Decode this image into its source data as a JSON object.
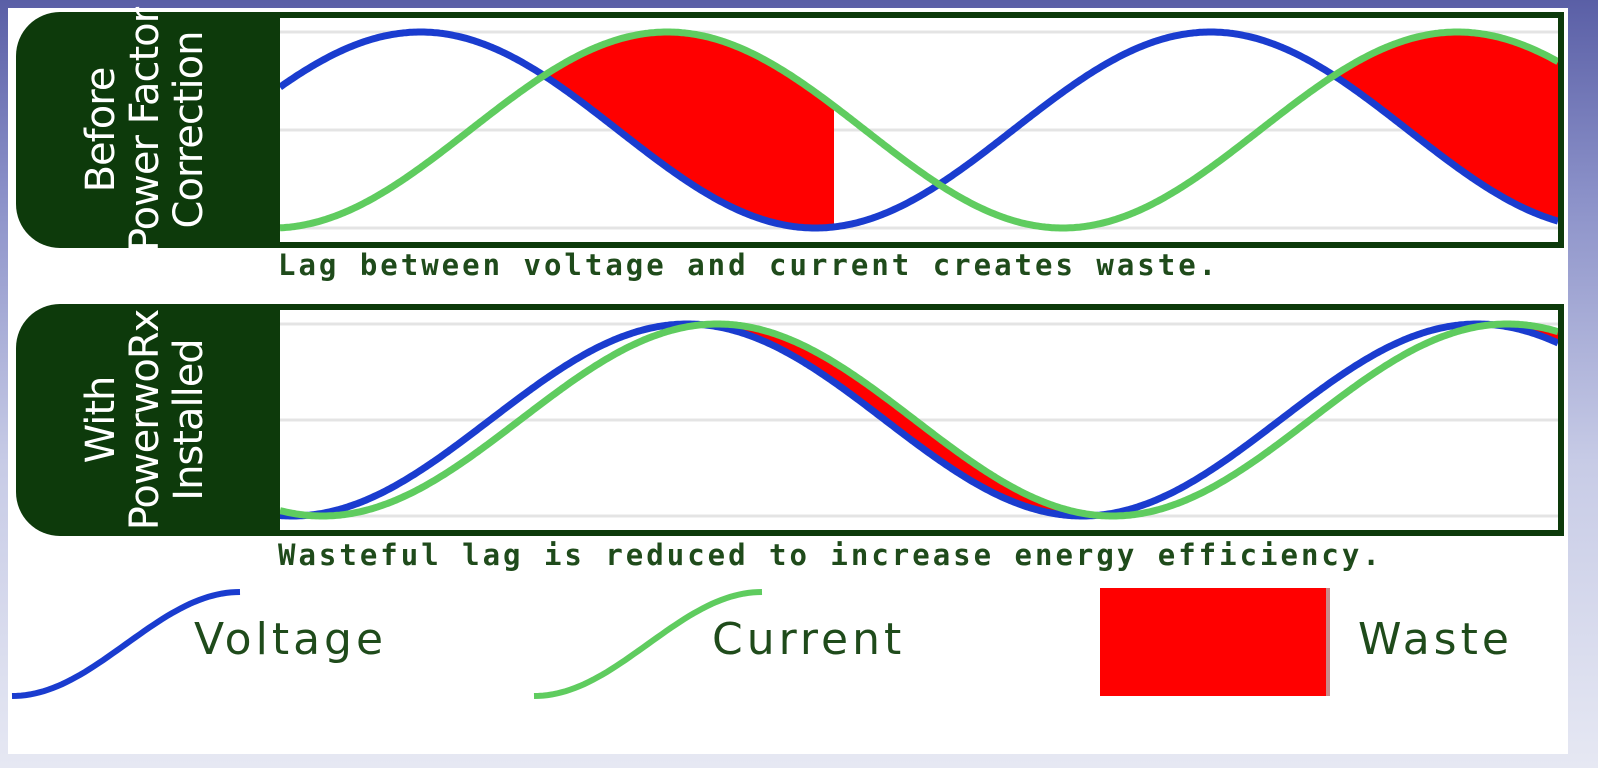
{
  "panels": [
    {
      "label_lines": [
        "Before",
        "Power Factor",
        "Correction"
      ],
      "caption": "Lag between voltage and current creates waste."
    },
    {
      "label_lines": [
        "With",
        "PowerwoRx",
        "Installed"
      ],
      "caption": "Wasteful lag is reduced to increase energy efficiency."
    }
  ],
  "legend": {
    "voltage": "Voltage",
    "current": "Current",
    "waste": "Waste"
  },
  "colors": {
    "voltage": "#1a3ccf",
    "current": "#5fcc5f",
    "waste": "#ff0000",
    "frame": "#0d3a0b"
  }
}
